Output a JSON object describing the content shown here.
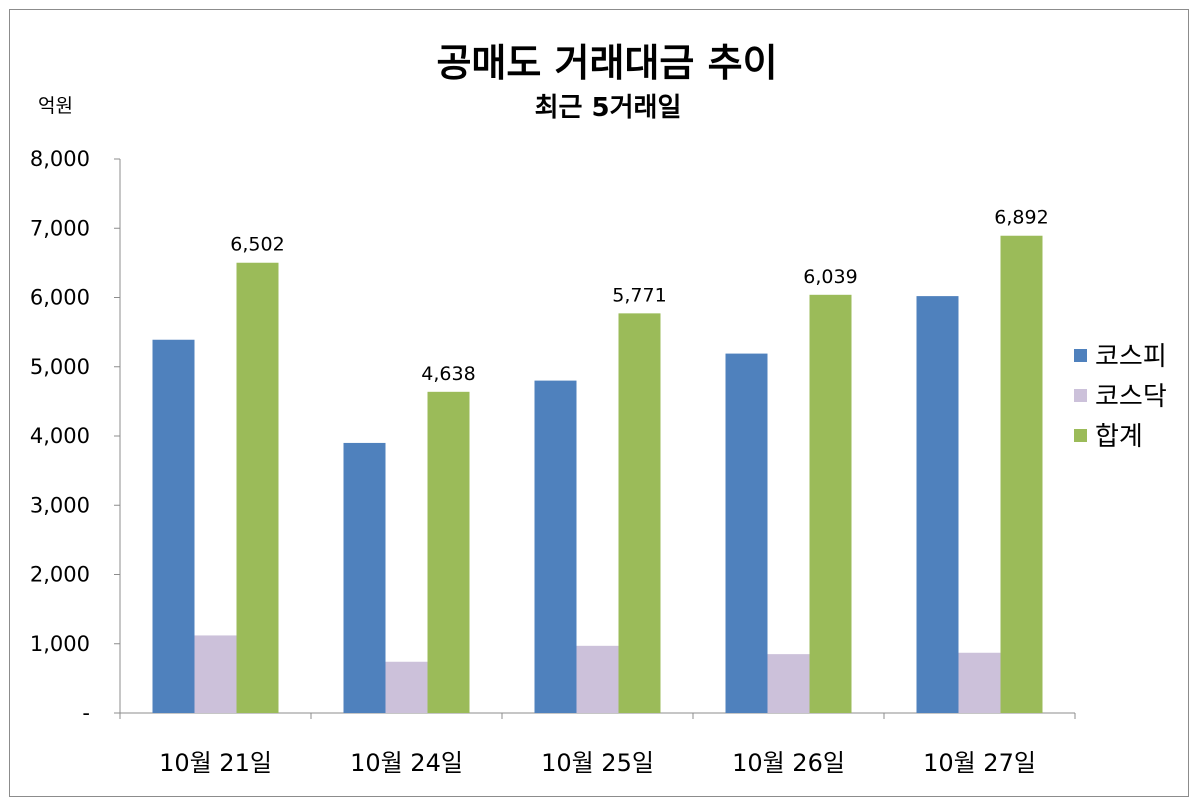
{
  "chart_data": {
    "type": "bar",
    "title": "공매도 거래대금 추이",
    "subtitle": "최근 5거래일",
    "unit_label": "억원",
    "categories": [
      "10월 21일",
      "10월 24일",
      "10월 25일",
      "10월 26일",
      "10월 27일"
    ],
    "series": [
      {
        "name": "코스피",
        "color": "#4f81bd",
        "values": [
          5390,
          3900,
          4800,
          5190,
          6020
        ]
      },
      {
        "name": "코스닥",
        "color": "#ccc1da",
        "values": [
          1120,
          740,
          970,
          850,
          870
        ]
      },
      {
        "name": "합계",
        "color": "#9bbb59",
        "values": [
          6502,
          4638,
          5771,
          6039,
          6892
        ]
      }
    ],
    "data_labels": {
      "series": "합계",
      "labels": [
        "6,502",
        "4,638",
        "5,771",
        "6,039",
        "6,892"
      ]
    },
    "ylim": [
      0,
      8000
    ],
    "yticks": [
      0,
      1000,
      2000,
      3000,
      4000,
      5000,
      6000,
      7000,
      8000
    ],
    "ytick_labels": [
      "-",
      "1,000",
      "2,000",
      "3,000",
      "4,000",
      "5,000",
      "6,000",
      "7,000",
      "8,000"
    ],
    "grid": false,
    "legend_position": "right"
  }
}
